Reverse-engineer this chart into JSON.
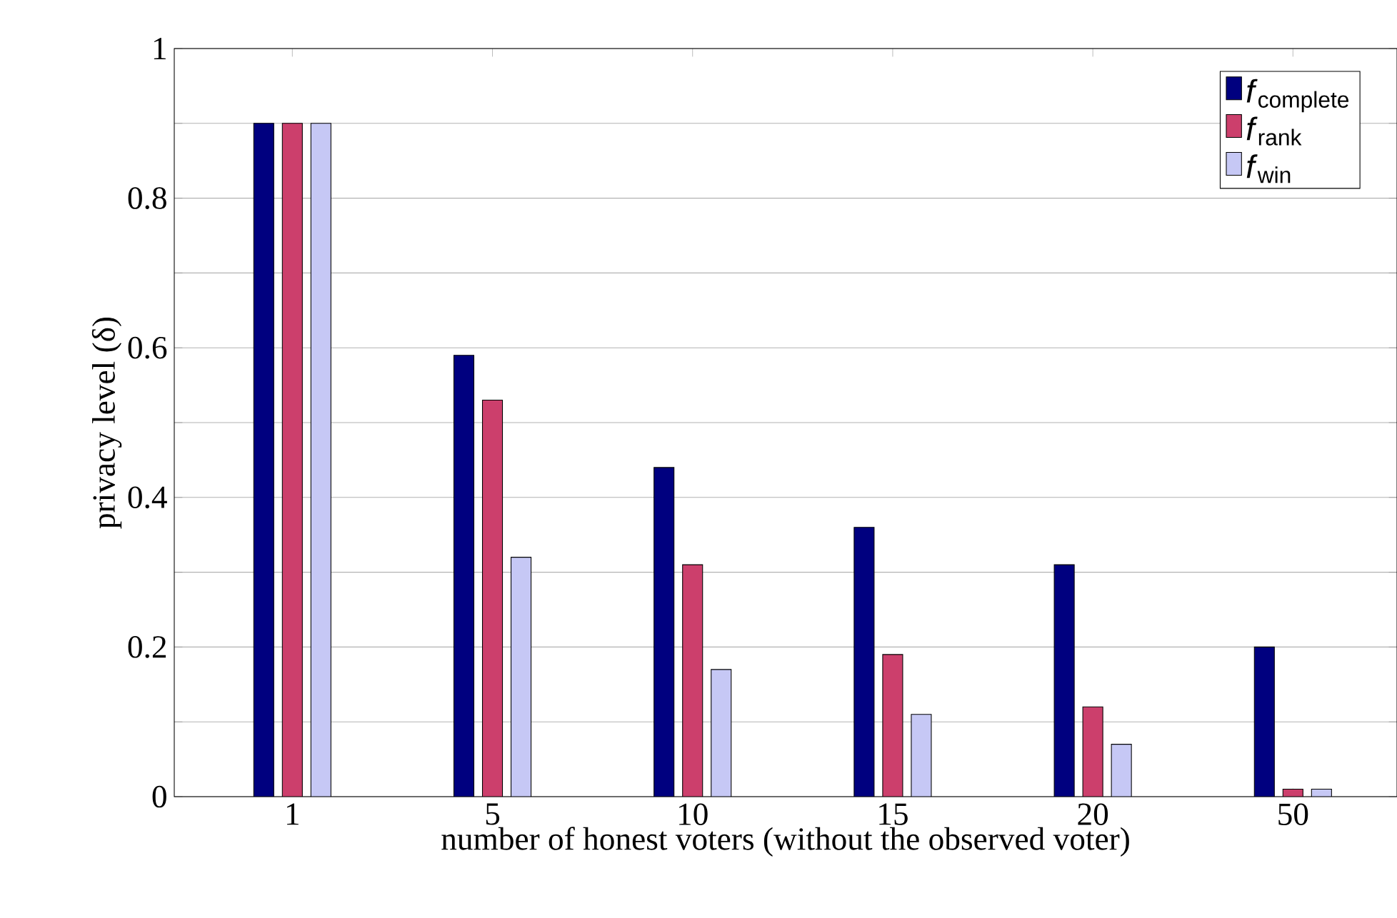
{
  "chart_data": {
    "type": "bar",
    "xlabel": "number of honest voters (without the observed voter)",
    "ylabel": "privacy level (δ)",
    "categories": [
      "1",
      "5",
      "10",
      "15",
      "20",
      "50"
    ],
    "series": [
      {
        "name": "*f*$_{complete}$",
        "color": "#00007f",
        "values": [
          0.9,
          0.59,
          0.44,
          0.36,
          0.31,
          0.2
        ]
      },
      {
        "name": "*f*$_{rank}$",
        "color": "#cc3f6c",
        "values": [
          0.9,
          0.53,
          0.31,
          0.19,
          0.12,
          0.01
        ]
      },
      {
        "name": "*f*$_{win}$",
        "color": "#c6c8f5",
        "values": [
          0.9,
          0.32,
          0.17,
          0.11,
          0.07,
          0.01
        ]
      }
    ],
    "ylim": [
      0,
      1
    ],
    "yticks": [
      0,
      {
        "value": 0.1,
        "label": null
      },
      0.2,
      {
        "value": 0.3,
        "label": null
      },
      0.4,
      {
        "value": 0.5,
        "label": null
      },
      0.6,
      {
        "value": 0.7,
        "label": null
      },
      0.8,
      {
        "value": 0.9,
        "label": null
      },
      1
    ],
    "grid": "y",
    "legend": "top right"
  }
}
